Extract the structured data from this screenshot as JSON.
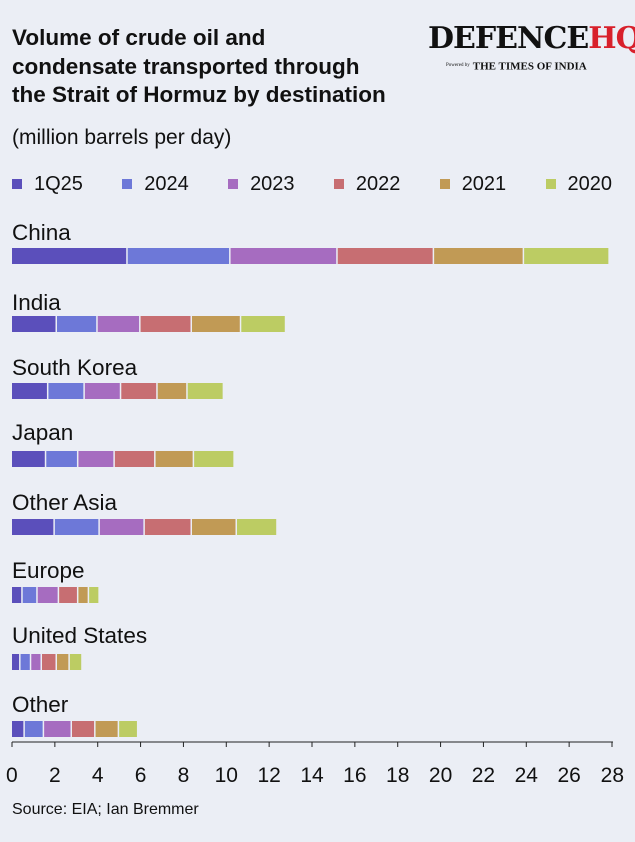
{
  "header": {
    "title_lines": [
      "Volume of crude oil and",
      "condensate transported through",
      "the Strait of Hormuz by destination"
    ],
    "unit": "(million barrels per day)"
  },
  "logo": {
    "main": "DEFENCE",
    "accent": "HQ",
    "powered": "Powered by",
    "paper": "THE TIMES OF INDIA"
  },
  "source": "Source: EIA; Ian Bremmer",
  "colors": {
    "1Q25": "#5b4fbb",
    "2024": "#6d78d8",
    "2023": "#a66cc0",
    "2022": "#c76e72",
    "2021": "#c19a55",
    "2020": "#bccc63",
    "axis": "#222222",
    "text": "#111111",
    "background": "#ebeef5"
  },
  "chart_data": {
    "type": "bar",
    "orientation": "horizontal",
    "stacked": true,
    "title": "Volume of crude oil and condensate transported through the Strait of Hormuz by destination",
    "subtitle": "(million barrels per day)",
    "categories": [
      "China",
      "India",
      "South Korea",
      "Japan",
      "Other Asia",
      "Europe",
      "United States",
      "Other"
    ],
    "series": [
      {
        "name": "1Q25",
        "values": [
          5.4,
          2.1,
          1.7,
          1.6,
          2.0,
          0.5,
          0.4,
          0.6
        ]
      },
      {
        "name": "2024",
        "values": [
          4.8,
          1.9,
          1.7,
          1.5,
          2.1,
          0.7,
          0.5,
          0.9
        ]
      },
      {
        "name": "2023",
        "values": [
          5.0,
          2.0,
          1.7,
          1.7,
          2.1,
          1.0,
          0.5,
          1.3
        ]
      },
      {
        "name": "2022",
        "values": [
          4.5,
          2.4,
          1.7,
          1.9,
          2.2,
          0.9,
          0.7,
          1.1
        ]
      },
      {
        "name": "2021",
        "values": [
          4.2,
          2.3,
          1.4,
          1.8,
          2.1,
          0.5,
          0.6,
          1.1
        ]
      },
      {
        "name": "2020",
        "values": [
          4.0,
          2.1,
          1.7,
          1.9,
          1.9,
          0.5,
          0.6,
          0.9
        ]
      }
    ],
    "xlim": [
      0,
      28
    ],
    "xticks": [
      0,
      2,
      4,
      6,
      8,
      10,
      12,
      14,
      16,
      18,
      20,
      22,
      24,
      26,
      28
    ],
    "grid": false,
    "legend_position": "top"
  }
}
